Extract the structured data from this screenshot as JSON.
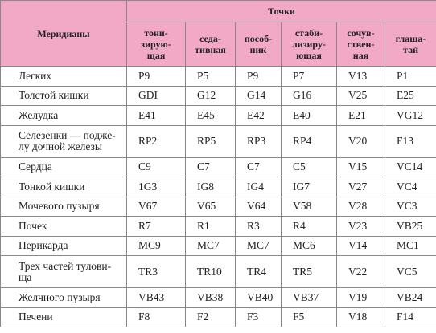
{
  "header": {
    "row_header": "Меридианы",
    "group": "Точки",
    "columns": [
      [
        "тони-",
        "зирую-",
        "щая"
      ],
      [
        "седа-",
        "тивная"
      ],
      [
        "пособ-",
        "ник"
      ],
      [
        "стаби-",
        "лизиру-",
        "ющая"
      ],
      [
        "сочув-",
        "ствен-",
        "ная"
      ],
      [
        "глаша-",
        "тай"
      ]
    ]
  },
  "rows": [
    {
      "meridian": [
        "Легких"
      ],
      "points": [
        "P9",
        "P5",
        "P9",
        "P7",
        "V13",
        "P1"
      ]
    },
    {
      "meridian": [
        "Толстой кишки"
      ],
      "points": [
        "GDI",
        "G12",
        "G14",
        "G16",
        "V25",
        "E25"
      ]
    },
    {
      "meridian": [
        "Желудка"
      ],
      "points": [
        "E41",
        "E45",
        "E42",
        "E40",
        "E21",
        "VG12"
      ]
    },
    {
      "meridian": [
        "Селезенки — подже-",
        "лу дочной железы"
      ],
      "points": [
        "RP2",
        "RP5",
        "RP3",
        "RP4",
        "V20",
        "F13"
      ]
    },
    {
      "meridian": [
        "Сердца"
      ],
      "points": [
        "C9",
        "C7",
        "C7",
        "C5",
        "V15",
        "VC14"
      ]
    },
    {
      "meridian": [
        "Тонкой кишки"
      ],
      "points": [
        "1G3",
        "IG8",
        "IG4",
        "IG7",
        "V27",
        "VC4"
      ]
    },
    {
      "meridian": [
        "Мочевого пузыря"
      ],
      "points": [
        "V67",
        "V65",
        "V64",
        "V58",
        "V28",
        "VC3"
      ]
    },
    {
      "meridian": [
        "Почек"
      ],
      "points": [
        "R7",
        "R1",
        "R3",
        "R4",
        "V23",
        "VB25"
      ]
    },
    {
      "meridian": [
        "Перикарда"
      ],
      "points": [
        "MC9",
        "MC7",
        "MC7",
        "MC6",
        "V14",
        "MC1"
      ]
    },
    {
      "meridian": [
        "Трех частей тулови-",
        "ща"
      ],
      "points": [
        "TR3",
        "TR10",
        "TR4",
        "TR5",
        "V22",
        "VC5"
      ]
    },
    {
      "meridian": [
        "Желчного пузыря"
      ],
      "points": [
        "VB43",
        "VB38",
        "VB40",
        "VB37",
        "V19",
        "VB24"
      ]
    },
    {
      "meridian": [
        "Печени"
      ],
      "points": [
        "F8",
        "F2",
        "F3",
        "F5",
        "V18",
        "F14"
      ]
    }
  ]
}
